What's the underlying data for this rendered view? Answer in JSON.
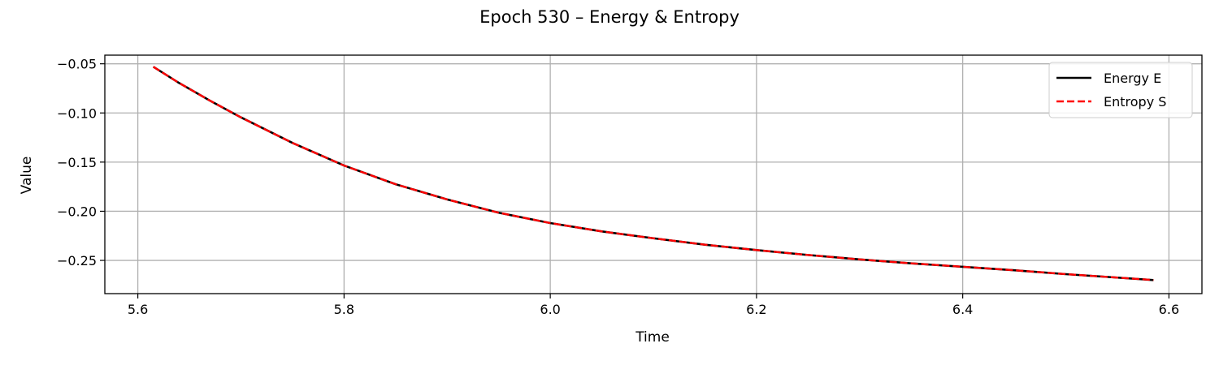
{
  "chart_data": {
    "type": "line",
    "title": "Epoch 530 – Energy & Entropy",
    "xlabel": "Time",
    "ylabel": "Value",
    "xlim": [
      5.568,
      6.632
    ],
    "ylim": [
      -0.2838,
      -0.0412
    ],
    "xticks": [
      5.6,
      5.8,
      6.0,
      6.2,
      6.4,
      6.6
    ],
    "xtick_labels": [
      "5.6",
      "5.8",
      "6.0",
      "6.2",
      "6.4",
      "6.6"
    ],
    "yticks": [
      -0.25,
      -0.2,
      -0.15,
      -0.1,
      -0.05
    ],
    "ytick_labels": [
      "−0.25",
      "−0.20",
      "−0.15",
      "−0.10",
      "−0.05"
    ],
    "grid": true,
    "legend_position": "top-right",
    "x": [
      5.615,
      5.64,
      5.67,
      5.7,
      5.75,
      5.8,
      5.85,
      5.9,
      5.95,
      6.0,
      6.05,
      6.1,
      6.15,
      6.2,
      6.25,
      6.3,
      6.35,
      6.4,
      6.45,
      6.5,
      6.55,
      6.585
    ],
    "series": [
      {
        "name": "Energy E",
        "color": "#000000",
        "style": "solid",
        "values": [
          -0.053,
          -0.0695,
          -0.0875,
          -0.1045,
          -0.1305,
          -0.1535,
          -0.1725,
          -0.188,
          -0.2015,
          -0.212,
          -0.2205,
          -0.2275,
          -0.234,
          -0.2395,
          -0.2445,
          -0.249,
          -0.253,
          -0.2565,
          -0.26,
          -0.264,
          -0.2675,
          -0.27
        ]
      },
      {
        "name": "Entropy S",
        "color": "#ff0000",
        "style": "dashed",
        "values": [
          -0.053,
          -0.0695,
          -0.0875,
          -0.1045,
          -0.1305,
          -0.1535,
          -0.1725,
          -0.188,
          -0.2015,
          -0.212,
          -0.2205,
          -0.2275,
          -0.234,
          -0.2395,
          -0.2445,
          -0.249,
          -0.253,
          -0.2565,
          -0.26,
          -0.264,
          -0.2675,
          -0.27
        ]
      }
    ]
  }
}
